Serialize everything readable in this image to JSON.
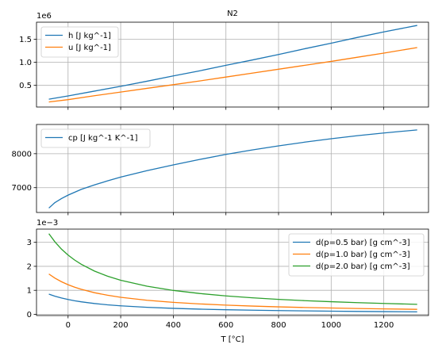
{
  "figure": {
    "title": "N2",
    "xlabel": "T [°C]"
  },
  "colors": {
    "blue": "#1f77b4",
    "orange": "#ff7f0e",
    "green": "#2ca02c",
    "grid": "#b0b0b0"
  },
  "chart_data": [
    {
      "type": "line",
      "title": "N2",
      "xlabel": "",
      "ylabel": "",
      "offset_label": "1e6",
      "xlim": [
        -120,
        1370
      ],
      "ylim": [
        0.03,
        1.87
      ],
      "xticks": [
        0,
        200,
        400,
        600,
        800,
        1000,
        1200
      ],
      "yticks": [
        0.5,
        1.0,
        1.5
      ],
      "ytick_labels": [
        "0.5",
        "1.0",
        "1.5"
      ],
      "grid": true,
      "legend_position": "upper left",
      "x": [
        -73,
        0,
        100,
        200,
        300,
        400,
        500,
        600,
        700,
        800,
        900,
        1000,
        1100,
        1200,
        1327
      ],
      "series": [
        {
          "name": "h [J kg^-1]",
          "color": "#1f77b4",
          "values": [
            0.2,
            0.27,
            0.375,
            0.48,
            0.59,
            0.705,
            0.815,
            0.935,
            1.05,
            1.17,
            1.295,
            1.415,
            1.54,
            1.66,
            1.8
          ]
        },
        {
          "name": "u [J kg^-1]",
          "color": "#ff7f0e",
          "values": [
            0.14,
            0.19,
            0.275,
            0.355,
            0.435,
            0.515,
            0.595,
            0.68,
            0.765,
            0.85,
            0.935,
            1.02,
            1.11,
            1.2,
            1.32
          ]
        }
      ]
    },
    {
      "type": "line",
      "title": "",
      "xlabel": "",
      "ylabel": "",
      "xlim": [
        -120,
        1370
      ],
      "ylim": [
        6270,
        8860
      ],
      "xticks": [
        0,
        200,
        400,
        600,
        800,
        1000,
        1200
      ],
      "yticks": [
        7000,
        8000
      ],
      "ytick_labels": [
        "7000",
        "8000"
      ],
      "grid": true,
      "legend_position": "upper left",
      "x": [
        -73,
        -50,
        -25,
        0,
        50,
        100,
        150,
        200,
        300,
        400,
        500,
        600,
        700,
        800,
        900,
        1000,
        1100,
        1200,
        1327
      ],
      "series": [
        {
          "name": "cp [J kg^-1 K^-1]",
          "color": "#1f77b4",
          "values": [
            6400,
            6560,
            6680,
            6780,
            6950,
            7080,
            7200,
            7310,
            7500,
            7670,
            7830,
            7980,
            8110,
            8230,
            8340,
            8440,
            8530,
            8610,
            8700
          ]
        }
      ]
    },
    {
      "type": "line",
      "title": "",
      "xlabel": "T [°C]",
      "ylabel": "",
      "offset_label": "1e−3",
      "xlim": [
        -120,
        1370
      ],
      "ylim": [
        -0.05,
        3.55
      ],
      "xticks": [
        0,
        200,
        400,
        600,
        800,
        1000,
        1200
      ],
      "xtick_labels": [
        "0",
        "200",
        "400",
        "600",
        "800",
        "1000",
        "1200"
      ],
      "yticks": [
        0,
        1,
        2,
        3
      ],
      "ytick_labels": [
        "0",
        "1",
        "2",
        "3"
      ],
      "grid": true,
      "legend_position": "upper right",
      "x": [
        -73,
        -50,
        -25,
        0,
        25,
        50,
        100,
        150,
        200,
        300,
        400,
        500,
        600,
        700,
        800,
        900,
        1000,
        1100,
        1200,
        1327
      ],
      "series": [
        {
          "name": "d(p=0.5 bar) [g cm^-3]",
          "color": "#1f77b4",
          "values": [
            0.84,
            0.755,
            0.679,
            0.617,
            0.566,
            0.522,
            0.451,
            0.397,
            0.355,
            0.293,
            0.249,
            0.217,
            0.192,
            0.172,
            0.156,
            0.143,
            0.131,
            0.122,
            0.113,
            0.104
          ]
        },
        {
          "name": "d(p=1.0 bar) [g cm^-3]",
          "color": "#ff7f0e",
          "values": [
            1.68,
            1.51,
            1.358,
            1.234,
            1.131,
            1.044,
            0.902,
            0.795,
            0.71,
            0.586,
            0.498,
            0.434,
            0.384,
            0.344,
            0.312,
            0.285,
            0.263,
            0.243,
            0.227,
            0.208
          ]
        },
        {
          "name": "d(p=2.0 bar) [g cm^-3]",
          "color": "#2ca02c",
          "values": [
            3.36,
            3.02,
            2.716,
            2.468,
            2.262,
            2.088,
            1.804,
            1.59,
            1.42,
            1.172,
            0.996,
            0.868,
            0.768,
            0.688,
            0.624,
            0.57,
            0.526,
            0.486,
            0.454,
            0.416
          ]
        }
      ]
    }
  ]
}
